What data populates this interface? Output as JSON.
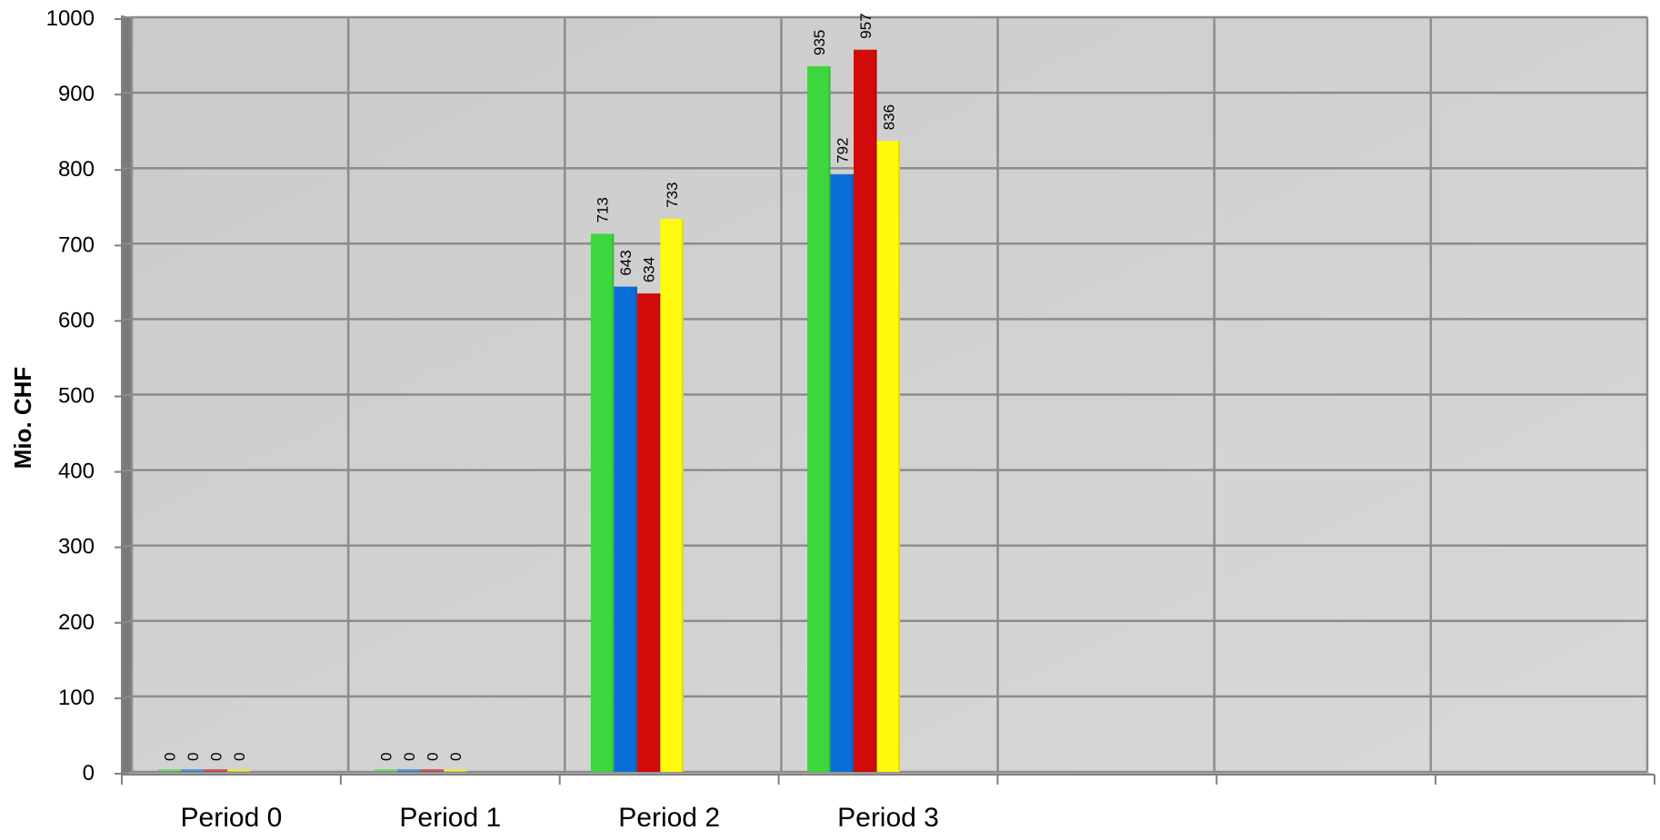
{
  "chart_data": {
    "type": "bar",
    "title": "",
    "xlabel": "",
    "ylabel": "Mio. CHF",
    "ylim": [
      0,
      1000
    ],
    "yticks": [
      0,
      100,
      200,
      300,
      400,
      500,
      600,
      700,
      800,
      900,
      1000
    ],
    "grid": true,
    "legend": "none",
    "slots": 7,
    "categories": [
      "Period 0",
      "Period 1",
      "Period 2",
      "Period 3"
    ],
    "series": [
      {
        "color": "#3CD73C",
        "values": [
          0,
          0,
          713,
          935
        ]
      },
      {
        "color": "#0A6ED7",
        "values": [
          0,
          0,
          643,
          792
        ]
      },
      {
        "color": "#D20A0A",
        "values": [
          0,
          0,
          634,
          957
        ]
      },
      {
        "color": "#FFFA0A",
        "values": [
          0,
          0,
          733,
          836
        ]
      }
    ],
    "colors": {
      "plot_background": "#CDCDCD",
      "grid": "#8C8C8C",
      "wall_side": "#7A7A7A"
    }
  }
}
